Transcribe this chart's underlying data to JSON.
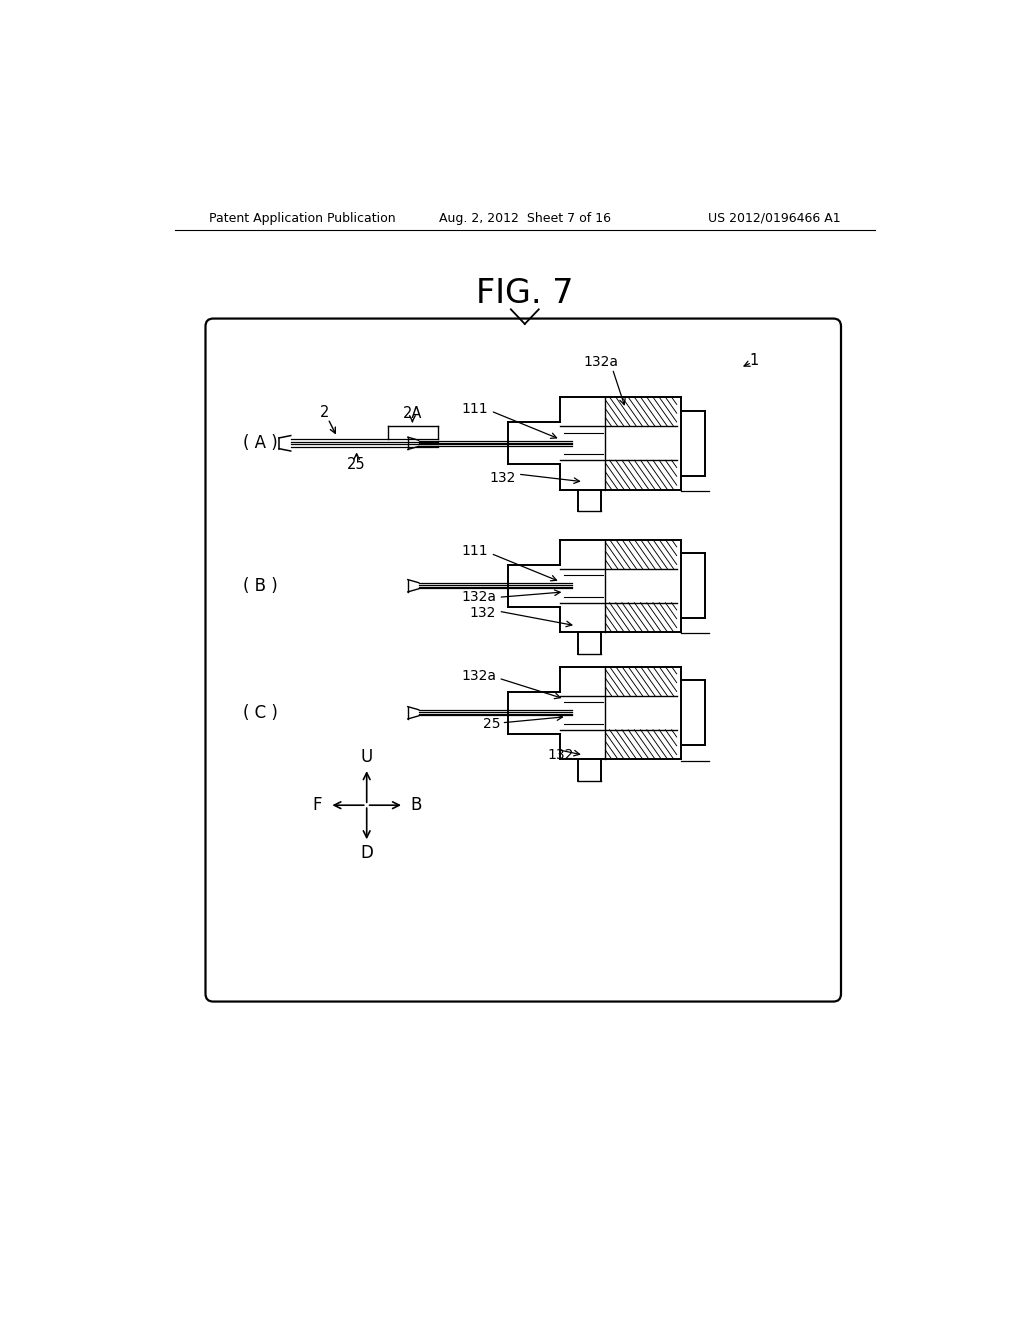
{
  "bg_color": "#ffffff",
  "header_left": "Patent Application Publication",
  "header_center": "Aug. 2, 2012  Sheet 7 of 16",
  "header_right": "US 2012/0196466 A1",
  "fig_title": "FIG. 7",
  "panel_labels": [
    "( A )",
    "( B )",
    "( C )"
  ],
  "label_1": "1",
  "label_2": "2",
  "label_2A": "2A",
  "label_25_a": "25",
  "label_25_c": "25",
  "label_111_a": "111",
  "label_111_b": "111",
  "label_132_a": "132",
  "label_132_b1": "132",
  "label_132_b2": "132a",
  "label_132a_a": "132a",
  "label_132a_c": "132a",
  "label_132_c": "132",
  "dir_U": "U",
  "dir_D": "D",
  "dir_F": "F",
  "dir_B": "B",
  "lw_main": 1.4,
  "lw_inner": 1.0,
  "lw_hatch": 0.7
}
